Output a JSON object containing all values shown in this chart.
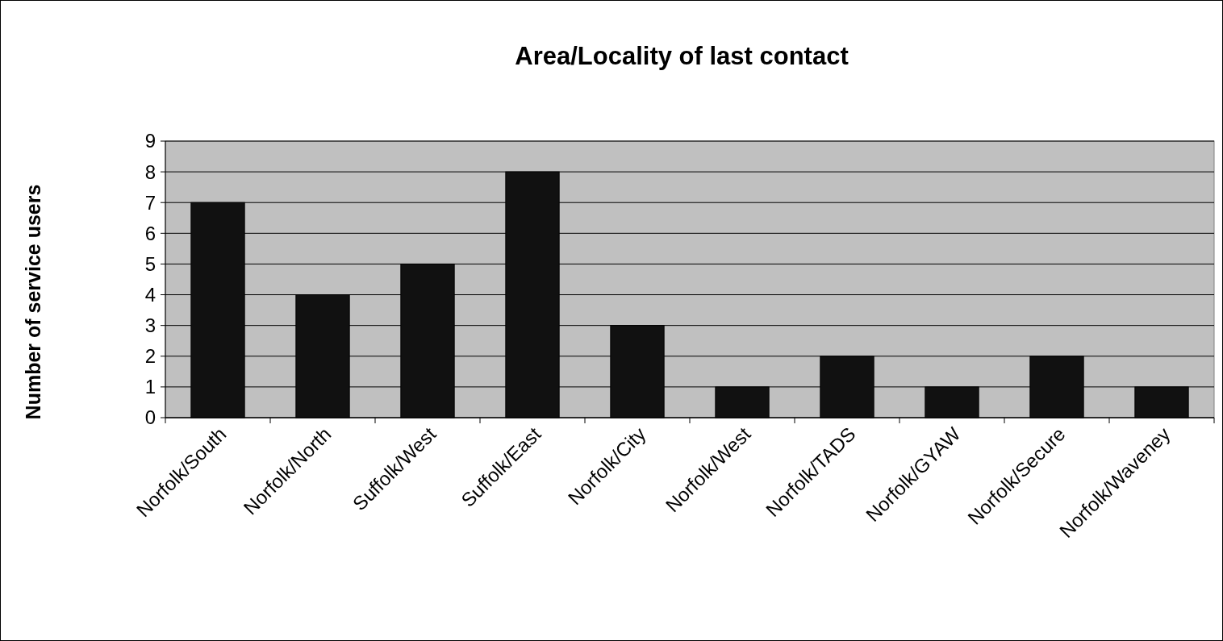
{
  "chart_data": {
    "type": "bar",
    "title": "Area/Locality of last contact",
    "ylabel": "Number of service users",
    "categories": [
      "Norfolk/South",
      "Norfolk/North",
      "Suffolk/West",
      "Suffolk/East",
      "Norfolk/City",
      "Norfolk/West",
      "Norfolk/TADS",
      "Norfolk/GYAW",
      "Norfolk/Secure",
      "Norfolk/Waveney"
    ],
    "values": [
      7,
      4,
      5,
      8,
      3,
      1,
      2,
      1,
      2,
      1
    ],
    "color": "#111111",
    "ylim": [
      0,
      9
    ],
    "yticks": [
      0,
      1,
      2,
      3,
      4,
      5,
      6,
      7,
      8,
      9
    ],
    "grid": "y"
  }
}
